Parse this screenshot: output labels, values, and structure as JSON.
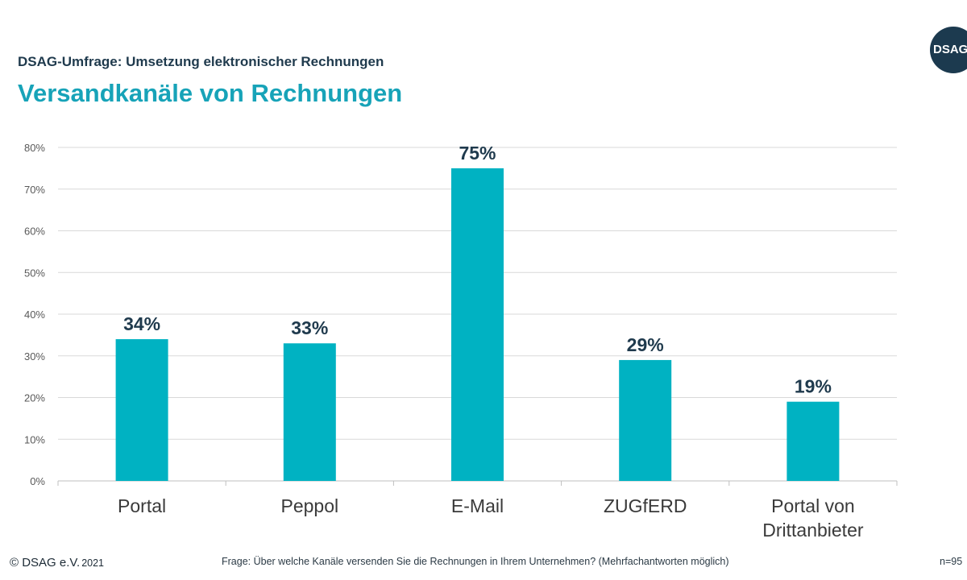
{
  "header": {
    "subtitle": "DSAG-Umfrage: Umsetzung elektronischer Rechnungen",
    "title": "Versandkanäle von Rechnungen",
    "logo_text": "DSAG"
  },
  "footer": {
    "copyright": "© DSAG e.V.",
    "date": "2021",
    "question": "Frage: Über welche Kanäle versenden Sie die Rechnungen in Ihrem Unternehmen? (Mehrfachantworten möglich)",
    "sample": "n=95"
  },
  "colors": {
    "bar": "#00b2c2",
    "title": "#17a3b8",
    "label": "#1f3a4d",
    "grid": "#d9d9d9"
  },
  "chart_data": {
    "type": "bar",
    "categories": [
      "Portal",
      "Peppol",
      "E-Mail",
      "ZUGfERD",
      "Portal von Drittanbieter"
    ],
    "category_lines": [
      [
        "Portal"
      ],
      [
        "Peppol"
      ],
      [
        "E-Mail"
      ],
      [
        "ZUGfERD"
      ],
      [
        "Portal von",
        "Drittanbieter"
      ]
    ],
    "values": [
      34,
      33,
      75,
      29,
      19
    ],
    "value_labels": [
      "34%",
      "33%",
      "75%",
      "29%",
      "19%"
    ],
    "ylim": [
      0,
      80
    ],
    "yticks": [
      0,
      10,
      20,
      30,
      40,
      50,
      60,
      70,
      80
    ],
    "ytick_labels": [
      "0%",
      "10%",
      "20%",
      "30%",
      "40%",
      "50%",
      "60%",
      "70%",
      "80%"
    ],
    "grid": true,
    "xlabel": "",
    "ylabel": ""
  }
}
